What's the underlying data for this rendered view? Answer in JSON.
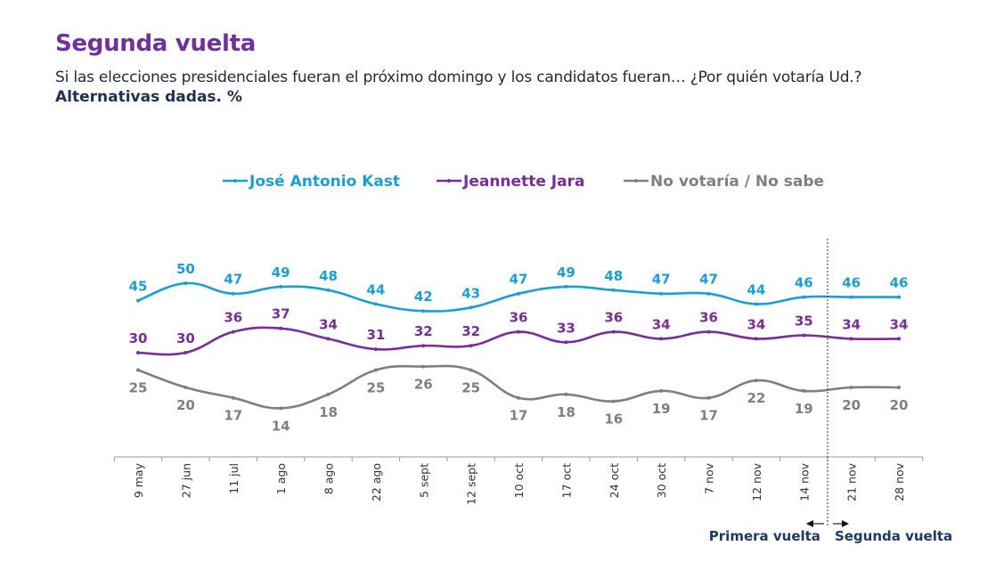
{
  "header": {
    "title": "Segunda vuelta",
    "subtitle": "Si las elecciones presidenciales fueran el próximo domingo y los candidatos fueran… ¿Por quién votaría Ud.?",
    "unit_note": "Alternativas dadas. %"
  },
  "chart_data": {
    "type": "line",
    "categories": [
      "9 may",
      "27 jun",
      "11 jul",
      "1 ago",
      "8 ago",
      "22 ago",
      "5 sept",
      "12 sept",
      "10 oct",
      "17 oct",
      "24 oct",
      "30 oct",
      "7 nov",
      "12 nov",
      "14 nov",
      "21 nov",
      "28 nov"
    ],
    "series": [
      {
        "name": "José Antonio Kast",
        "color": "#1b9ed4",
        "label_position": "above",
        "values": [
          45,
          50,
          47,
          49,
          48,
          44,
          42,
          43,
          47,
          49,
          48,
          47,
          47,
          44,
          46,
          46,
          46
        ]
      },
      {
        "name": "Jeannette Jara",
        "color": "#7a2c98",
        "label_position": "above",
        "values": [
          30,
          30,
          36,
          37,
          34,
          31,
          32,
          32,
          36,
          33,
          36,
          34,
          36,
          34,
          35,
          34,
          34
        ]
      },
      {
        "name": "No votaría / No sabe",
        "color": "#7f7f7f",
        "label_position": "below",
        "values": [
          25,
          20,
          17,
          14,
          18,
          25,
          26,
          25,
          17,
          18,
          16,
          19,
          17,
          22,
          19,
          20,
          20
        ]
      }
    ],
    "ylim": [
      0,
      50
    ],
    "grid": false,
    "legend_placement": "top",
    "smooth": true,
    "divider": {
      "after_category": "14 nov",
      "left_label": "Primera vuelta",
      "right_label": "Segunda vuelta",
      "color": "#1f3864"
    }
  }
}
